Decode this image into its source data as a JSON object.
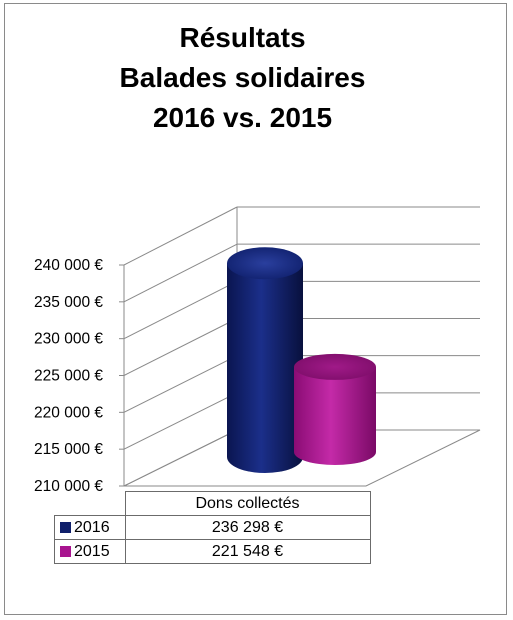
{
  "chart_data": {
    "type": "bar",
    "style": "3d-cylinder",
    "title_lines": [
      "Résultats",
      "Balades solidaires",
      "2016 vs. 2015"
    ],
    "categories": [
      "Dons collectés"
    ],
    "series": [
      {
        "name": "2016",
        "color": "#0f1f6b",
        "values": [
          236298
        ],
        "value_label": "236 298 €"
      },
      {
        "name": "2015",
        "color": "#a8148f",
        "values": [
          221548
        ],
        "value_label": "221 548 €"
      }
    ],
    "ylim": [
      210000,
      240000
    ],
    "y_ticks": [
      210000,
      215000,
      220000,
      225000,
      230000,
      235000,
      240000
    ],
    "y_tick_labels": [
      "210 000 €",
      "215 000 €",
      "220 000 €",
      "225 000 €",
      "230 000 €",
      "235 000 €",
      "240 000 €"
    ],
    "grid": true,
    "legend": "data-table"
  }
}
